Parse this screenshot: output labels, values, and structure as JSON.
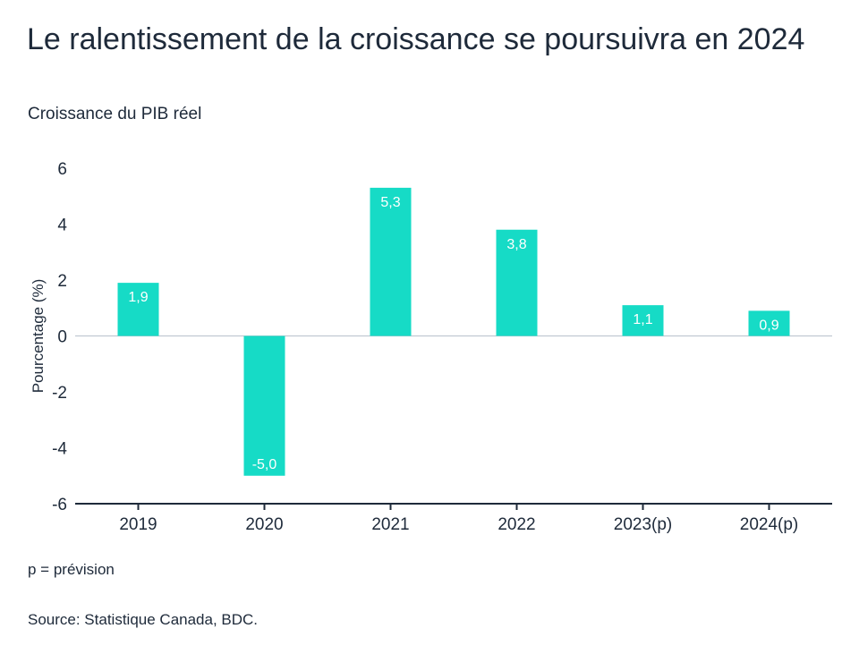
{
  "chart_data": {
    "type": "bar",
    "title": "Le ralentissement de la croissance se poursuivra en 2024",
    "subtitle": "Croissance du PIB réel",
    "xlabel": "",
    "ylabel": "Pourcentage (%)",
    "categories": [
      "2019",
      "2020",
      "2021",
      "2022",
      "2023(p)",
      "2024(p)"
    ],
    "values": [
      1.9,
      -5.0,
      5.3,
      3.8,
      1.1,
      0.9
    ],
    "data_labels": [
      "1,9",
      "-5,0",
      "5,3",
      "3,8",
      "1,1",
      "0,9"
    ],
    "ylim": [
      -6,
      6
    ],
    "yticks": [
      6,
      4,
      2,
      0,
      -2,
      -4,
      -6
    ],
    "grid": false,
    "legend": "none",
    "bar_color": "#16dbc6",
    "axis_color": "#1e2a3a"
  },
  "note": "p = prévision",
  "source": "Source: Statistique Canada, BDC."
}
